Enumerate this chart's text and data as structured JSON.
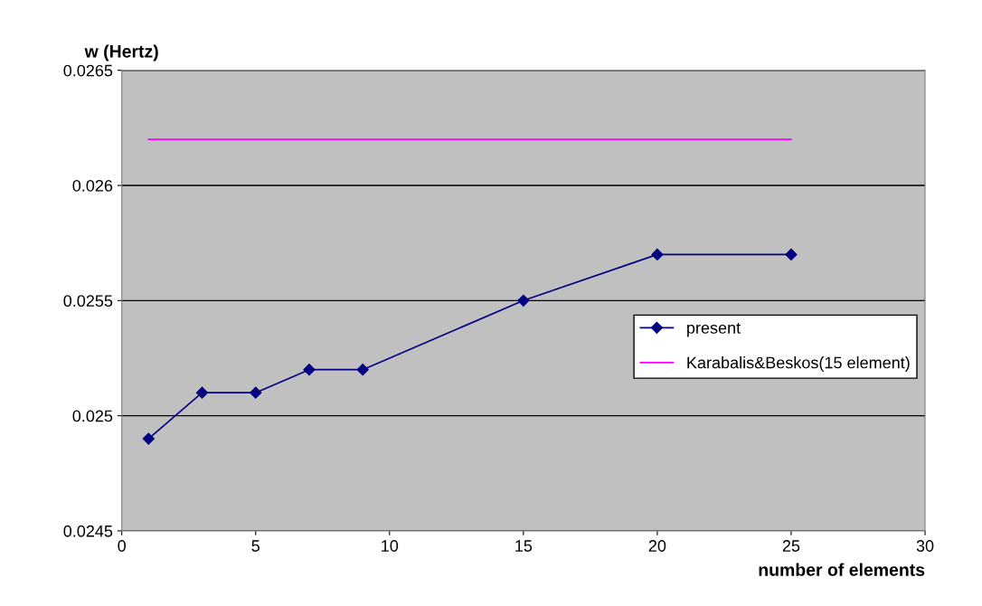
{
  "chart_data": {
    "type": "line",
    "xlabel": "number of elements",
    "ylabel": "w (Hertz)",
    "xlim": [
      0,
      30
    ],
    "xticks": [
      0,
      5,
      10,
      15,
      20,
      25,
      30
    ],
    "ylim": [
      0.0245,
      0.0265
    ],
    "yticks": [
      0.0245,
      0.025,
      0.0255,
      0.026,
      0.0265
    ],
    "grid": "y",
    "legend": "right",
    "series": [
      {
        "name": "present",
        "color": "#000080",
        "marker": "diamond",
        "x": [
          1,
          3,
          5,
          7,
          9,
          15,
          20,
          25
        ],
        "values": [
          0.0249,
          0.0251,
          0.0251,
          0.0252,
          0.0252,
          0.0255,
          0.0257,
          0.0257
        ]
      },
      {
        "name": "Karabalis&Beskos(15 element)",
        "color": "#ff00ff",
        "marker": "none",
        "x": [
          1,
          25
        ],
        "values": [
          0.0262,
          0.0262
        ]
      }
    ]
  }
}
